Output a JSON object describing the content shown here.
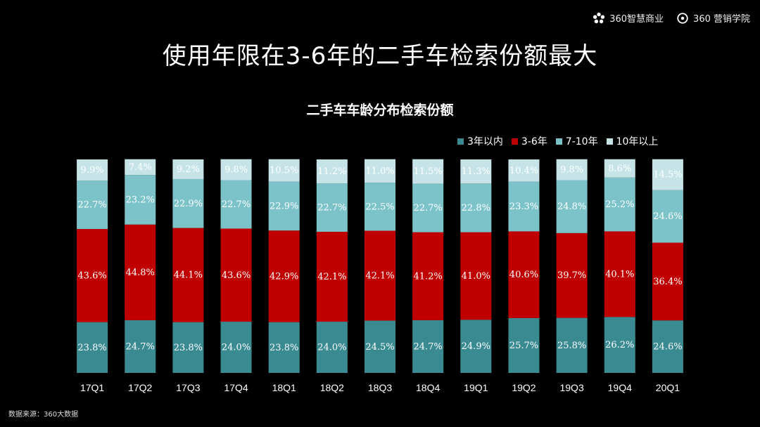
{
  "brand": {
    "left_label": "360智慧商业",
    "right_label": "360 营销学院"
  },
  "title": "使用年限在3-6年的二手车检索份额最大",
  "chart_data": {
    "type": "bar",
    "stacked": true,
    "title": "二手车车龄分布检索份额",
    "categories": [
      "17Q1",
      "17Q2",
      "17Q3",
      "17Q4",
      "18Q1",
      "18Q2",
      "18Q3",
      "18Q4",
      "19Q1",
      "19Q2",
      "19Q3",
      "19Q4",
      "20Q1"
    ],
    "series": [
      {
        "name": "3年以内",
        "color": "#3a8a92",
        "values": [
          23.8,
          24.7,
          23.8,
          24.0,
          23.8,
          24.0,
          24.5,
          24.7,
          24.9,
          25.7,
          25.8,
          26.2,
          24.6
        ],
        "labels": [
          "23.8%",
          "24.7%",
          "23.8%",
          "24.0%",
          "23.8%",
          "24.0%",
          "24.5%",
          "24.7%",
          "24.9%",
          "25.7%",
          "25.8%",
          "26.2%",
          "24.6%"
        ]
      },
      {
        "name": "3-6年",
        "color": "#c00000",
        "values": [
          43.6,
          44.8,
          44.1,
          43.6,
          42.9,
          42.1,
          42.1,
          41.2,
          41.0,
          40.6,
          39.7,
          40.1,
          36.4
        ],
        "labels": [
          "43.6%",
          "44.8%",
          "44.1%",
          "43.6%",
          "42.9%",
          "42.1%",
          "42.1%",
          "41.2%",
          "41.0%",
          "40.6%",
          "39.7%",
          "40.1%",
          "36.4%"
        ]
      },
      {
        "name": "7-10年",
        "color": "#7cc3c9",
        "values": [
          22.7,
          23.2,
          22.9,
          22.7,
          22.9,
          22.7,
          22.5,
          22.7,
          22.8,
          23.3,
          24.8,
          25.2,
          24.6
        ],
        "labels": [
          "22.7%",
          "23.2%",
          "22.9%",
          "22.7%",
          "22.9%",
          "22.7%",
          "22.5%",
          "22.7%",
          "22.8%",
          "23.3%",
          "24.8%",
          "25.2%",
          "24.6%"
        ]
      },
      {
        "name": "10年以上",
        "color": "#c6e4e7",
        "values": [
          9.9,
          7.4,
          9.2,
          9.8,
          10.5,
          11.2,
          11.0,
          11.5,
          11.3,
          10.4,
          9.8,
          8.6,
          14.5
        ],
        "labels": [
          "9.9%",
          "7.4%",
          "9.2%",
          "9.8%",
          "10.5%",
          "11.2%",
          "11.0%",
          "11.5%",
          "11.3%",
          "10.4%",
          "9.8%",
          "8.6%",
          "14.5%"
        ]
      }
    ],
    "ylim": [
      0,
      100
    ],
    "legend_position": "top-right"
  },
  "source": "数据来源：360大数据"
}
